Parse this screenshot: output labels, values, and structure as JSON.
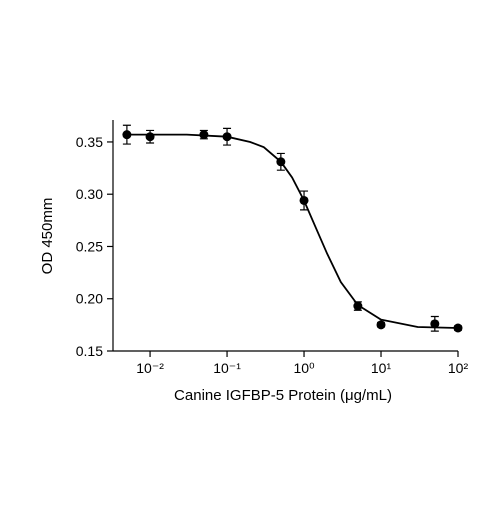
{
  "chart_data": {
    "type": "scatter",
    "xlabel": "Canine IGFBP-5 Protein (μg/mL)",
    "ylabel": "OD 450mm",
    "x": [
      0.005,
      0.01,
      0.05,
      0.1,
      0.5,
      1,
      5,
      10,
      50,
      100
    ],
    "values": [
      0.357,
      0.355,
      0.357,
      0.355,
      0.331,
      0.294,
      0.193,
      0.175,
      0.176,
      0.172
    ],
    "errors": [
      0.009,
      0.006,
      0.004,
      0.008,
      0.008,
      0.009,
      0.004,
      0.002,
      0.007,
      0.002
    ],
    "color": "#000000",
    "curve": {
      "x": [
        0.005,
        0.01,
        0.03,
        0.1,
        0.2,
        0.3,
        0.5,
        0.7,
        1,
        1.5,
        2,
        3,
        5,
        10,
        30,
        100
      ],
      "values": [
        0.357,
        0.357,
        0.357,
        0.355,
        0.35,
        0.345,
        0.331,
        0.316,
        0.294,
        0.264,
        0.243,
        0.216,
        0.194,
        0.18,
        0.173,
        0.172
      ]
    },
    "xscale": "log",
    "xlim": [
      0.0033,
      100
    ],
    "xticks": [
      {
        "value": 0.01,
        "label": "10⁻²"
      },
      {
        "value": 0.1,
        "label": "10⁻¹"
      },
      {
        "value": 1,
        "label": "10⁰"
      },
      {
        "value": 10,
        "label": "10¹"
      },
      {
        "value": 100,
        "label": "10²"
      }
    ],
    "ylim": [
      0.15,
      0.371
    ],
    "yticks": [
      0.15,
      {
        "value": 0.2,
        "label": "0.20"
      },
      0.25,
      {
        "value": 0.3,
        "label": "0.30"
      },
      0.35
    ]
  }
}
